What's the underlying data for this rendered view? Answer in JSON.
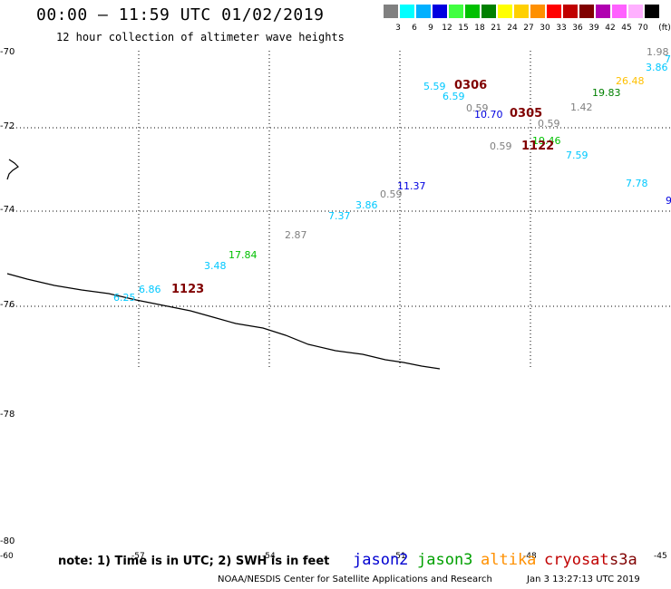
{
  "title": "00:00 – 11:59 UTC 01/02/2019",
  "subtitle": "12 hour collection of altimeter wave heights",
  "colorbar": {
    "unit": "(ft)",
    "entries": [
      {
        "label": "3",
        "color": "#808080"
      },
      {
        "label": "6",
        "color": "#00ffff"
      },
      {
        "label": "9",
        "color": "#00b0ff"
      },
      {
        "label": "12",
        "color": "#0000e0"
      },
      {
        "label": "15",
        "color": "#40ff40"
      },
      {
        "label": "18",
        "color": "#00c000"
      },
      {
        "label": "21",
        "color": "#008000"
      },
      {
        "label": "24",
        "color": "#ffff00"
      },
      {
        "label": "27",
        "color": "#ffd000"
      },
      {
        "label": "30",
        "color": "#ff9000"
      },
      {
        "label": "33",
        "color": "#ff0000"
      },
      {
        "label": "36",
        "color": "#c00000"
      },
      {
        "label": "39",
        "color": "#800000"
      },
      {
        "label": "42",
        "color": "#b000b0"
      },
      {
        "label": "45",
        "color": "#ff60ff"
      },
      {
        "label": "70",
        "color": "#ffb0ff"
      },
      {
        "label": "",
        "color": "#000000"
      }
    ]
  },
  "latitudes": [
    "-70",
    "-72",
    "-74",
    "-76",
    "-78",
    "-80"
  ],
  "longitudes": [
    "-60",
    "-57",
    "-54",
    "-51",
    "-48",
    "-45"
  ],
  "wave_heights": [
    {
      "v": "1.98",
      "c": "#808080"
    },
    {
      "v": "7",
      "c": "#00c8ff"
    },
    {
      "v": "3.86",
      "c": "#00c8ff"
    },
    {
      "v": "26.48",
      "c": "#ffc000"
    },
    {
      "v": "19.83",
      "c": "#008000"
    },
    {
      "v": "5.59",
      "c": "#00c8ff"
    },
    {
      "v": "6.59",
      "c": "#00c8ff"
    },
    {
      "v": "0.59",
      "c": "#808080"
    },
    {
      "v": "10.70",
      "c": "#0000e0"
    },
    {
      "v": "1.42",
      "c": "#808080"
    },
    {
      "v": "0.59",
      "c": "#808080"
    },
    {
      "v": "0.59",
      "c": "#808080"
    },
    {
      "v": "19.46",
      "c": "#00c000"
    },
    {
      "v": "7.59",
      "c": "#00c8ff"
    },
    {
      "v": "7.78",
      "c": "#00c8ff"
    },
    {
      "v": "9",
      "c": "#0000e0"
    },
    {
      "v": "11.37",
      "c": "#0000e0"
    },
    {
      "v": "0.59",
      "c": "#808080"
    },
    {
      "v": "3.86",
      "c": "#00c8ff"
    },
    {
      "v": "7.37",
      "c": "#00c8ff"
    },
    {
      "v": "2.87",
      "c": "#808080"
    },
    {
      "v": "17.84",
      "c": "#00c000"
    },
    {
      "v": "3.48",
      "c": "#00c8ff"
    },
    {
      "v": "6.86",
      "c": "#00c8ff"
    },
    {
      "v": "6.25",
      "c": "#00c8ff"
    }
  ],
  "pass_times": [
    {
      "v": "0306",
      "c": "#800000"
    },
    {
      "v": "0305",
      "c": "#800000"
    },
    {
      "v": "1122",
      "c": "#800000"
    },
    {
      "v": "1123",
      "c": "#800000"
    }
  ],
  "note": "note: 1) Time is in UTC; 2) SWH is in feet",
  "satellites": [
    {
      "name": "jason2",
      "color": "#0000d0"
    },
    {
      "name": "jason3",
      "color": "#00a000"
    },
    {
      "name": "altika",
      "color": "#ff9000"
    },
    {
      "name": "cryosat",
      "color": "#c00000"
    },
    {
      "name": "s3a",
      "color": "#800000"
    }
  ],
  "credit": "NOAA/NESDIS Center for Satellite Applications and Research",
  "run_date": "Jan  3 13:27:13 UTC 2019"
}
